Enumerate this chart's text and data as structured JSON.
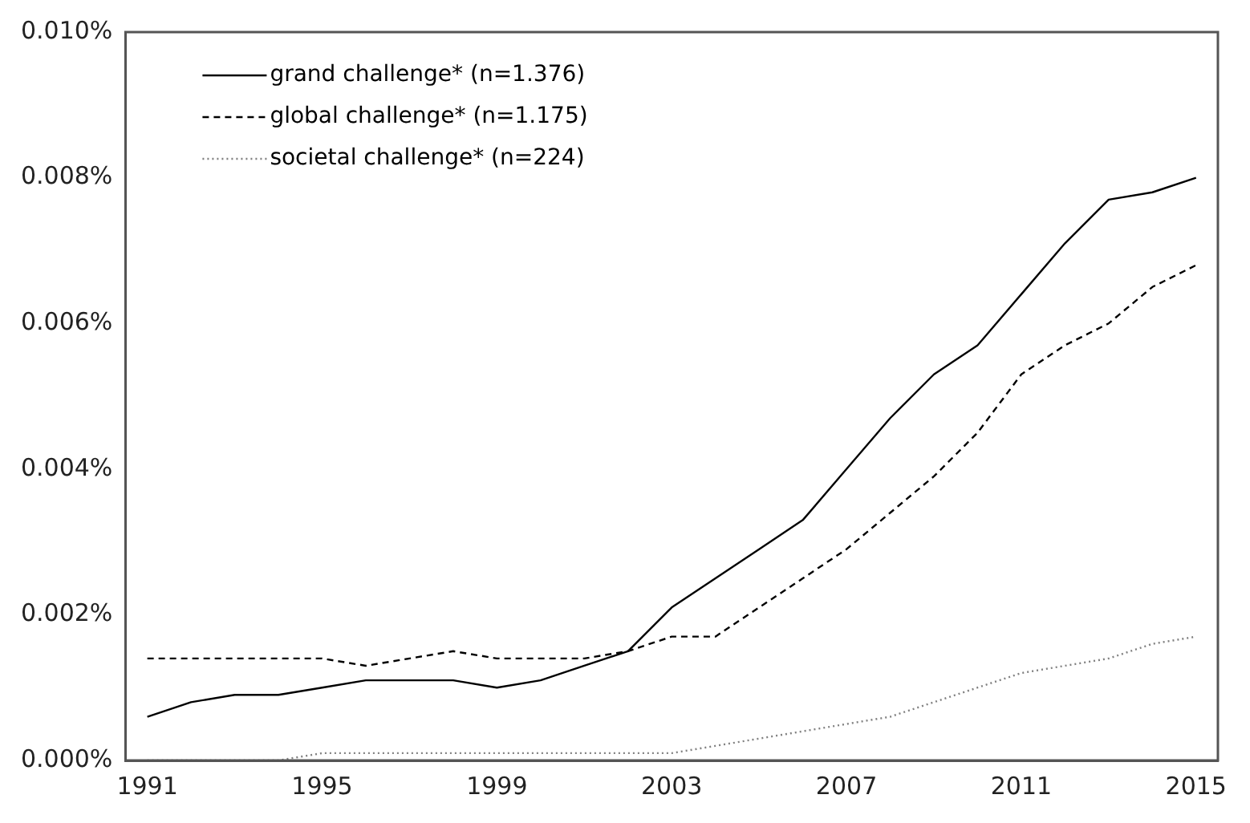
{
  "chart_data": {
    "type": "line",
    "x": [
      1991,
      1992,
      1993,
      1994,
      1995,
      1996,
      1997,
      1998,
      1999,
      2000,
      2001,
      2002,
      2003,
      2004,
      2005,
      2006,
      2007,
      2008,
      2009,
      2010,
      2011,
      2012,
      2013,
      2014,
      2015
    ],
    "series": [
      {
        "name": "grand challenge* (n=1.376)",
        "color": "#000000",
        "line_style": "solid",
        "values": [
          0.0006,
          0.0008,
          0.0009,
          0.0009,
          0.001,
          0.0011,
          0.0011,
          0.0011,
          0.001,
          0.0011,
          0.0013,
          0.0015,
          0.0021,
          0.0025,
          0.0029,
          0.0033,
          0.004,
          0.0047,
          0.0053,
          0.0057,
          0.0064,
          0.0071,
          0.0077,
          0.0078,
          0.008
        ]
      },
      {
        "name": "global challenge* (n=1.175)",
        "color": "#000000",
        "line_style": "dashed",
        "values": [
          0.0014,
          0.0014,
          0.0014,
          0.0014,
          0.0014,
          0.0013,
          0.0014,
          0.0015,
          0.0014,
          0.0014,
          0.0014,
          0.0015,
          0.0017,
          0.0017,
          0.0021,
          0.0025,
          0.0029,
          0.0034,
          0.0039,
          0.0045,
          0.0053,
          0.0057,
          0.006,
          0.0065,
          0.0068
        ]
      },
      {
        "name": "societal challenge* (n=224)",
        "color": "#808080",
        "line_style": "dotted",
        "values": [
          0,
          0,
          0,
          0,
          0.0001,
          0.0001,
          0.0001,
          0.0001,
          0.0001,
          0.0001,
          0.0001,
          0.0001,
          0.0001,
          0.0002,
          0.0003,
          0.0004,
          0.0005,
          0.0006,
          0.0008,
          0.001,
          0.0012,
          0.0013,
          0.0014,
          0.0016,
          0.0017
        ]
      }
    ],
    "xlim": [
      1990.5,
      2015.5
    ],
    "xticks": [
      1991,
      1995,
      1999,
      2003,
      2007,
      2011,
      2015
    ],
    "ylim": [
      0,
      0.01
    ],
    "yticks": [
      {
        "value": 0,
        "label": "0.000%"
      },
      {
        "value": 0.002,
        "label": "0.002%"
      },
      {
        "value": 0.004,
        "label": "0.004%"
      },
      {
        "value": 0.006,
        "label": "0.006%"
      },
      {
        "value": 0.008,
        "label": "0.008%"
      },
      {
        "value": 0.01,
        "label": "0.010%"
      }
    ],
    "grid": false,
    "legend": "top left",
    "marker": "none"
  }
}
